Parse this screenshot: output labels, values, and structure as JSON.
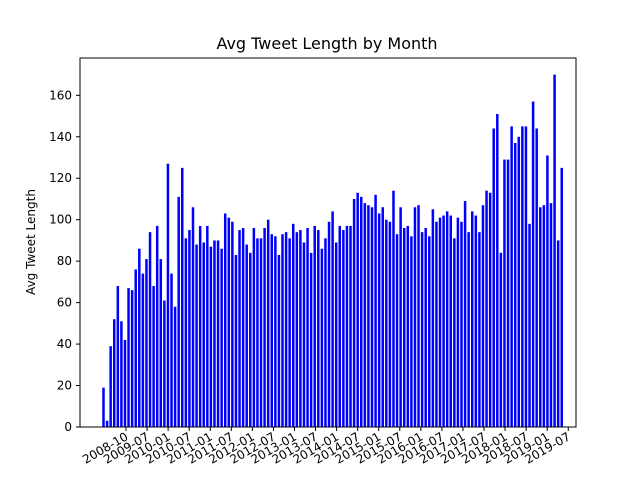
{
  "chart_data": {
    "type": "bar",
    "title": "Avg Tweet Length by Month",
    "xlabel": "",
    "ylabel": "Avg Tweet Length",
    "ylim": [
      0,
      178
    ],
    "yticks": [
      0,
      20,
      40,
      60,
      80,
      100,
      120,
      140,
      160
    ],
    "grid": false,
    "bar_color": "#0000ff",
    "tick_labels": [
      "2008-10",
      "2009-07",
      "2010-01",
      "2010-07",
      "2011-01",
      "2011-07",
      "2012-01",
      "2012-07",
      "2013-01",
      "2013-07",
      "2014-01",
      "2014-07",
      "2015-01",
      "2015-07",
      "2016-01",
      "2016-07",
      "2017-01",
      "2017-07",
      "2018-01",
      "2018-07",
      "2019-01",
      "2019-07"
    ],
    "values": [
      19,
      3,
      39,
      52,
      68,
      51,
      42,
      67,
      66,
      76,
      86,
      74,
      81,
      94,
      68,
      97,
      81,
      61,
      127,
      74,
      58,
      111,
      125,
      91,
      95,
      106,
      88,
      97,
      89,
      97,
      87,
      90,
      90,
      86,
      103,
      101,
      99,
      83,
      95,
      96,
      88,
      84,
      96,
      91,
      91,
      96,
      100,
      93,
      92,
      83,
      93,
      94,
      91,
      98,
      94,
      95,
      89,
      96,
      84,
      97,
      95,
      86,
      91,
      99,
      104,
      89,
      97,
      95,
      97,
      97,
      110,
      113,
      111,
      108,
      107,
      106,
      112,
      103,
      106,
      100,
      99,
      114,
      93,
      106,
      96,
      97,
      92,
      106,
      107,
      94,
      96,
      92,
      105,
      99,
      101,
      102,
      104,
      102,
      91,
      101,
      99,
      109,
      94,
      104,
      102,
      94,
      107,
      114,
      113,
      144,
      151,
      84,
      129,
      129,
      145,
      137,
      140,
      145,
      145,
      98,
      157,
      144,
      106,
      107,
      131,
      108,
      170,
      90,
      125
    ]
  }
}
